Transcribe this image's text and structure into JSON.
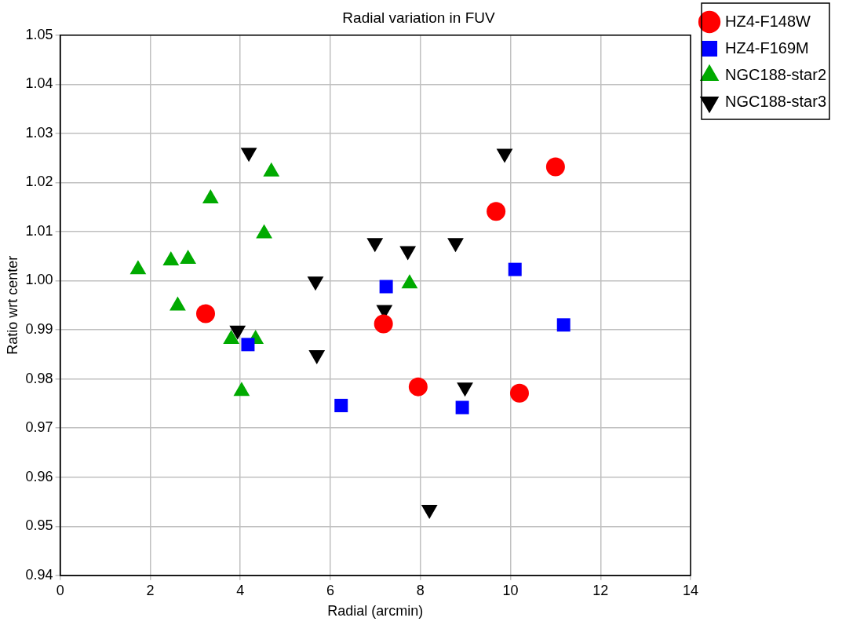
{
  "chart_data": {
    "type": "scatter",
    "title": "Radial variation in FUV",
    "xlabel": "Radial (arcmin)",
    "ylabel": "Ratio wrt center",
    "xlim": [
      0,
      14
    ],
    "xticks": [
      0,
      2,
      4,
      6,
      8,
      10,
      12,
      14
    ],
    "ylim": [
      0.94,
      1.05
    ],
    "yticks": [
      0.94,
      0.95,
      0.96,
      0.97,
      0.98,
      0.99,
      {
        "value": 1,
        "label": "1.00"
      },
      1.01,
      1.02,
      1.03,
      1.04,
      1.05
    ],
    "grid": true,
    "legend": "top right",
    "series": [
      {
        "name": "HZ4-F148W",
        "color": "#ff0000",
        "marker": "circle",
        "x": [
          3.23,
          7.18,
          7.95,
          9.68,
          10.2,
          11.0
        ],
        "values": [
          0.9933,
          0.9912,
          0.9784,
          1.0141,
          0.9771,
          1.0232
        ]
      },
      {
        "name": "HZ4-F169M",
        "color": "#0000ff",
        "marker": "square",
        "x": [
          4.17,
          6.24,
          7.24,
          8.93,
          10.1,
          11.18
        ],
        "values": [
          0.987,
          0.9746,
          0.9988,
          0.9742,
          1.0023,
          0.991
        ]
      },
      {
        "name": "NGC188-star2",
        "color": "#00aa00",
        "marker": "triangle",
        "x": [
          1.73,
          2.46,
          2.84,
          2.61,
          3.34,
          3.8,
          4.34,
          4.03,
          4.53,
          4.69,
          7.76
        ],
        "values": [
          1.0023,
          1.0041,
          1.0044,
          0.9949,
          1.0167,
          0.9881,
          0.9881,
          0.9775,
          1.0096,
          1.0222,
          0.9994
        ]
      },
      {
        "name": "NGC188-star3",
        "color": "#000000",
        "marker": "triangle-down",
        "x": [
          4.19,
          3.94,
          5.67,
          5.7,
          6.99,
          7.2,
          7.72,
          8.78,
          8.99,
          8.2,
          9.87
        ],
        "values": [
          1.0261,
          0.9899,
          0.9999,
          0.9849,
          1.0077,
          0.9941,
          1.0061,
          1.0077,
          0.9783,
          0.9534,
          1.0259
        ]
      }
    ]
  }
}
